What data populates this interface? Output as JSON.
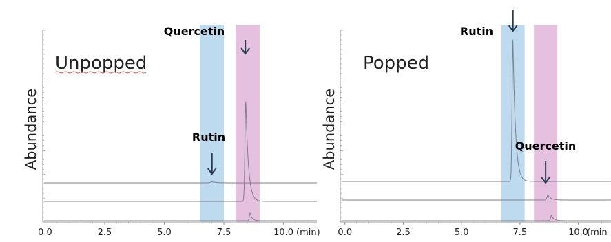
{
  "chart_data": [
    {
      "type": "line",
      "title": "Unpopped",
      "ylabel": "Abundance",
      "xlabel": "",
      "unit": "(min)",
      "x_ticks": [
        "0.0",
        "2.5",
        "5.0",
        "7.5",
        "10.0"
      ],
      "xlim": [
        -0.1,
        11.4
      ],
      "highlight_bands": [
        {
          "compound": "Rutin",
          "range": [
            6.5,
            7.5
          ],
          "color": "#b6d6ec"
        },
        {
          "compound": "Quercetin",
          "range": [
            8.0,
            9.0
          ],
          "color": "#e3b9dc"
        }
      ],
      "annotations": [
        {
          "label": "Quercetin",
          "x": 8.4
        },
        {
          "label": "Rutin",
          "x": 7.0
        }
      ],
      "series": [
        {
          "baseline": 0.29,
          "peaks": [
            {
              "x": 7.0,
              "h": 0.01,
              "w": 0.08
            }
          ]
        },
        {
          "baseline": 0.14,
          "peaks": [
            {
              "x": 8.42,
              "h": 0.92,
              "w": 0.05
            }
          ]
        },
        {
          "baseline": 0.02,
          "peaks": [
            {
              "x": 8.6,
              "h": 0.07,
              "w": 0.04
            }
          ]
        }
      ]
    },
    {
      "type": "line",
      "title": "Popped",
      "ylabel": "Abundance",
      "xlabel": "",
      "unit": "(min",
      "x_ticks": [
        "0.0",
        "2.5",
        "5.0",
        "7.5",
        "10.0"
      ],
      "xlim": [
        -0.2,
        11.4
      ],
      "highlight_bands": [
        {
          "compound": "Rutin",
          "range": [
            6.7,
            7.7
          ],
          "color": "#b6d6ec"
        },
        {
          "compound": "Quercetin",
          "range": [
            8.1,
            9.1
          ],
          "color": "#e3b9dc"
        }
      ],
      "annotations": [
        {
          "label": "Rutin",
          "x": 7.2
        },
        {
          "label": "Quercetin",
          "x": 8.6
        }
      ],
      "series": [
        {
          "baseline": 0.3,
          "peaks": [
            {
              "x": 7.2,
              "h": 1.12,
              "w": 0.05
            }
          ]
        },
        {
          "baseline": 0.155,
          "peaks": [
            {
              "x": 8.7,
              "h": 0.04,
              "w": 0.06
            }
          ]
        },
        {
          "baseline": 0.02,
          "peaks": [
            {
              "x": 8.85,
              "h": 0.04,
              "w": 0.05
            }
          ]
        }
      ]
    }
  ]
}
